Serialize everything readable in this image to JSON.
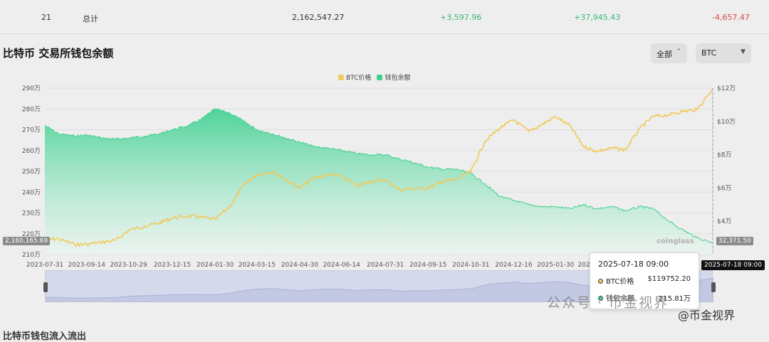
{
  "summary_row": {
    "index": "21",
    "label": "总计",
    "value": "2,162,547.27",
    "change_1": "+3,597.96",
    "change_2": "+37,945.43",
    "change_3": "-4,657.47"
  },
  "section_title": "比特币 交易所钱包余额",
  "filters": {
    "range": "全部",
    "coin": "BTC"
  },
  "watermark": {
    "text": "公众号 · 币金视界",
    "brand": "@币金视界",
    "logo": "coinglass"
  },
  "tooltip": {
    "date": "2025-07-18 09:00",
    "rows": [
      {
        "label": "BTC价格",
        "value": "$119752.20"
      },
      {
        "label": "钱包余额",
        "value": "215.81万"
      }
    ]
  },
  "edge_labels": {
    "left": "2,160,165.69",
    "right": "32,371.50",
    "hover_date": "2025-07-18 09:00"
  },
  "bottom_title_peek": "比特币钱包流入流出",
  "colors": {
    "price": "#f0c95a",
    "balance": "#3fcf8e",
    "positive": "#35b979",
    "negative": "#e0464b"
  },
  "chart_data": {
    "type": "line",
    "series": [
      {
        "name": "BTC价格",
        "axis": "right",
        "chart": "line",
        "x": [
          "2023-07-31",
          "2023-08-15",
          "2023-09-01",
          "2023-09-14",
          "2023-10-01",
          "2023-10-15",
          "2023-10-29",
          "2023-11-15",
          "2023-12-01",
          "2023-12-15",
          "2024-01-01",
          "2024-01-15",
          "2024-01-30",
          "2024-02-15",
          "2024-03-01",
          "2024-03-15",
          "2024-04-01",
          "2024-04-15",
          "2024-04-30",
          "2024-05-15",
          "2024-06-01",
          "2024-06-14",
          "2024-07-01",
          "2024-07-15",
          "2024-07-31",
          "2024-08-15",
          "2024-09-01",
          "2024-09-15",
          "2024-10-01",
          "2024-10-15",
          "2024-10-31",
          "2024-11-15",
          "2024-12-01",
          "2024-12-16",
          "2025-01-01",
          "2025-01-15",
          "2025-01-30",
          "2025-02-15",
          "2025-03-01",
          "2025-03-15",
          "2025-04-01",
          "2025-04-15",
          "2025-05-01",
          "2025-05-15",
          "2025-06-01",
          "2025-06-15",
          "2025-07-01",
          "2025-07-18"
        ],
        "y": [
          29200,
          29400,
          26000,
          26200,
          27500,
          28500,
          34500,
          37000,
          39000,
          42000,
          43000,
          42500,
          41000,
          49000,
          62000,
          68000,
          70000,
          65000,
          60000,
          66000,
          68000,
          67000,
          61000,
          64000,
          65000,
          59000,
          59500,
          60000,
          64000,
          65000,
          70000,
          88000,
          96000,
          101000,
          94000,
          98000,
          103000,
          97000,
          85000,
          82000,
          84000,
          83000,
          96000,
          103000,
          104000,
          106000,
          107000,
          119752
        ]
      },
      {
        "name": "钱包余额",
        "axis": "left",
        "chart": "area",
        "x": [
          "2023-07-31",
          "2023-08-15",
          "2023-09-01",
          "2023-09-14",
          "2023-10-01",
          "2023-10-15",
          "2023-10-29",
          "2023-11-15",
          "2023-12-01",
          "2023-12-15",
          "2024-01-01",
          "2024-01-15",
          "2024-01-30",
          "2024-02-15",
          "2024-03-01",
          "2024-03-15",
          "2024-04-01",
          "2024-04-15",
          "2024-04-30",
          "2024-05-15",
          "2024-06-01",
          "2024-06-14",
          "2024-07-01",
          "2024-07-15",
          "2024-07-31",
          "2024-08-15",
          "2024-09-01",
          "2024-09-15",
          "2024-10-01",
          "2024-10-15",
          "2024-10-31",
          "2024-11-15",
          "2024-12-01",
          "2024-12-16",
          "2025-01-01",
          "2025-01-15",
          "2025-01-30",
          "2025-02-15",
          "2025-03-01",
          "2025-03-15",
          "2025-04-01",
          "2025-04-15",
          "2025-05-01",
          "2025-05-15",
          "2025-06-01",
          "2025-06-15",
          "2025-07-01",
          "2025-07-18"
        ],
        "y": [
          272,
          268,
          267,
          267.5,
          266,
          265.5,
          266,
          267,
          268,
          270,
          272,
          275,
          280,
          278,
          274,
          270,
          268,
          266,
          264,
          262,
          261,
          260,
          258.5,
          258,
          258,
          256,
          254,
          252,
          251,
          251,
          249,
          244,
          238,
          236,
          234,
          233,
          233,
          232,
          234,
          232,
          233,
          231,
          233,
          232,
          226,
          222,
          218,
          215.81
        ]
      }
    ],
    "x_ticks": [
      "2023-07-31",
      "2023-09-14",
      "2023-10-29",
      "2023-12-15",
      "2024-01-30",
      "2024-03-15",
      "2024-04-30",
      "2024-06-14",
      "2024-07-31",
      "2024-09-15",
      "2024-10-31",
      "2024-12-16",
      "2025-01-30",
      "2025-03-15"
    ],
    "y_left_ticks": [
      "210万",
      "220万",
      "230万",
      "240万",
      "250万",
      "260万",
      "270万",
      "280万",
      "290万"
    ],
    "y_right_ticks": [
      "$4万",
      "$6万",
      "$8万",
      "$10万",
      "$12万"
    ],
    "y_left_range": [
      210,
      290
    ],
    "y_right_range": [
      20000,
      120000
    ],
    "legend": [
      "BTC价格",
      "钱包余额"
    ],
    "legend_position": "top-center"
  }
}
